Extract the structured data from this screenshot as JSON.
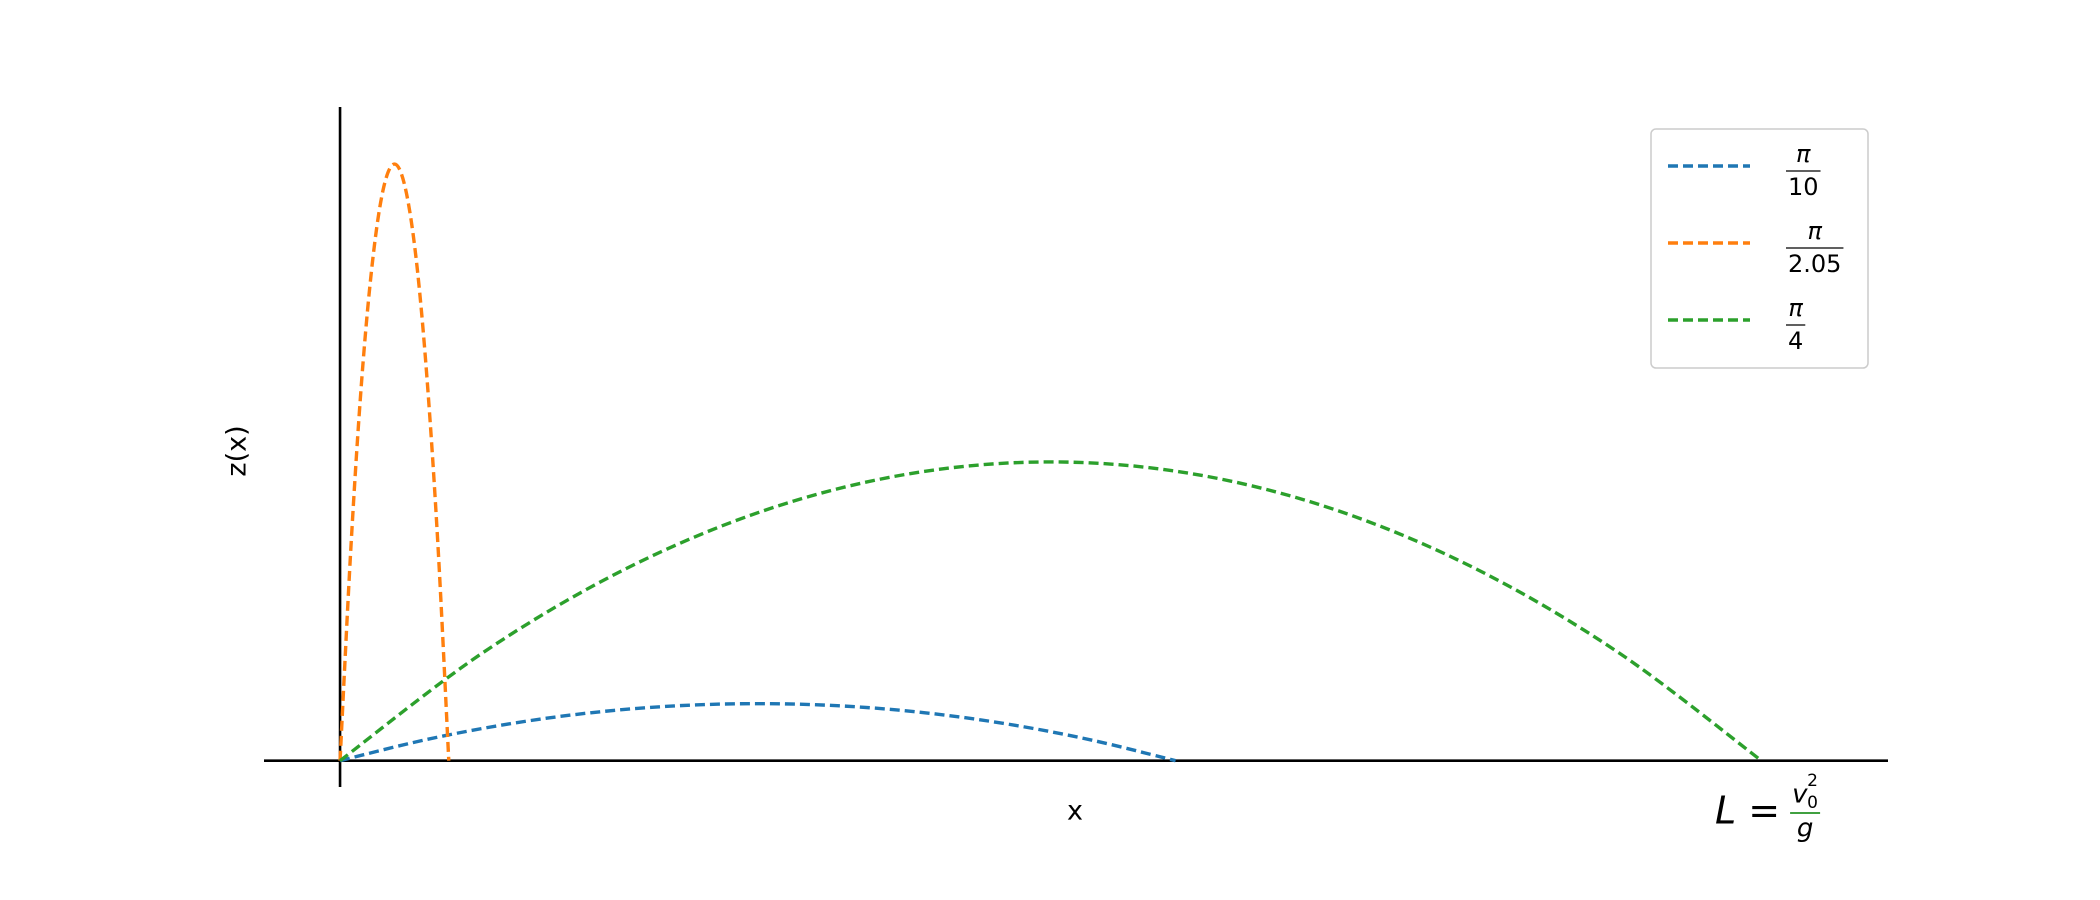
{
  "chart_data": {
    "type": "line",
    "x_label": "x",
    "y_label": "z(x)",
    "xlim": [
      -0.0535,
      1.089
    ],
    "ylim": [
      -0.022,
      0.547
    ],
    "legend": "upper right",
    "series": [
      {
        "name": {
          "numerator": "π",
          "denominator": "10"
        },
        "color": "#1f77b4",
        "x": [
          0,
          0.0588,
          0.1176,
          0.1763,
          0.2351,
          0.2939,
          0.3527,
          0.4115,
          0.4702,
          0.529,
          0.5878
        ],
        "values": [
          0,
          0.01719,
          0.03056,
          0.04011,
          0.04584,
          0.04775,
          0.04584,
          0.04011,
          0.03056,
          0.01719,
          0
        ]
      },
      {
        "name": {
          "numerator": "π",
          "denominator": "2.05"
        },
        "color": "#ff7f0e",
        "x": [
          0,
          0.0077,
          0.0153,
          0.023,
          0.0306,
          0.0383,
          0.0459,
          0.0536,
          0.0612,
          0.0689,
          0.0765
        ],
        "values": [
          0,
          0.17974,
          0.31953,
          0.41939,
          0.4793,
          0.49927,
          0.4793,
          0.41939,
          0.31953,
          0.17974,
          0
        ]
      },
      {
        "name": {
          "numerator": "π",
          "denominator": "4"
        },
        "color": "#2ca02c",
        "x": [
          0,
          0.1,
          0.2,
          0.3,
          0.4,
          0.5,
          0.6,
          0.7,
          0.8,
          0.9,
          1.0
        ],
        "values": [
          0,
          0.09,
          0.16,
          0.21,
          0.24,
          0.25,
          0.24,
          0.21,
          0.16,
          0.09,
          0
        ]
      }
    ],
    "annotation": {
      "lhs": "L =",
      "numerator": "v",
      "subscript": "0",
      "superscript": "2",
      "denominator": "g",
      "color": "green"
    }
  }
}
